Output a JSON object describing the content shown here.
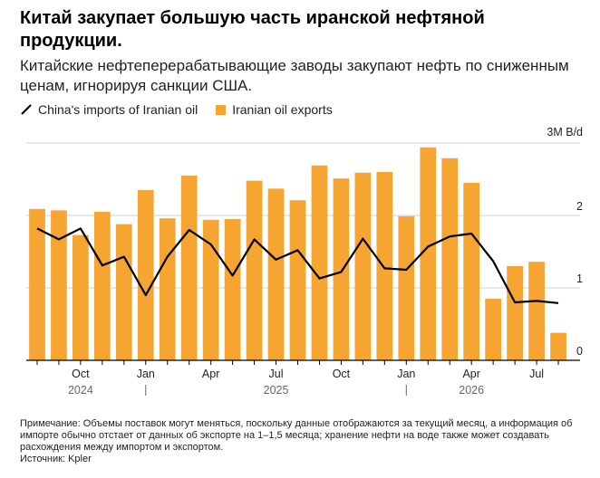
{
  "title": "Китай закупает большую часть иранской нефтяной продукции.",
  "subtitle": "Китайские нефтеперерабатывающие заводы закупают нефть по сниженным ценам, игнорируя санкции США.",
  "legend": {
    "line_label": "China's imports of Iranian oil",
    "bar_label": "Iranian oil exports"
  },
  "note": "Примечание: Объемы поставок могут меняться, поскольку данные отображаются за текущий месяц, а информация об импорте обычно отстает от данных об экспорте на 1–1,5 месяца; хранение нефти на воде также может создавать расхождения между импортом и экспортом.",
  "source": "Источник: Kpler",
  "colors": {
    "bar": "#f6a432",
    "line": "#000000",
    "grid": "#d0d0d0"
  },
  "chart_data": {
    "type": "bar",
    "unit_label": "3M B/d",
    "ylim": [
      0,
      3
    ],
    "yticks": [
      0,
      1,
      2
    ],
    "categories": [
      "2024-08",
      "2024-09",
      "2024-10",
      "2024-11",
      "2024-12",
      "2025-01",
      "2025-02",
      "2025-03",
      "2025-04",
      "2025-05",
      "2025-06",
      "2025-07",
      "2025-08",
      "2025-09",
      "2025-10",
      "2025-11",
      "2025-12",
      "2026-01",
      "2026-02",
      "2026-03",
      "2026-04",
      "2026-05",
      "2026-06",
      "2026-07",
      "2026-08"
    ],
    "series": [
      {
        "name": "Iranian oil exports",
        "kind": "bar",
        "values": [
          2.09,
          2.07,
          1.73,
          2.05,
          1.88,
          2.35,
          1.96,
          2.55,
          1.94,
          1.95,
          2.48,
          2.37,
          2.21,
          2.69,
          2.51,
          2.59,
          2.6,
          1.99,
          2.94,
          2.79,
          2.45,
          0.85,
          1.3,
          1.36,
          0.38
        ]
      },
      {
        "name": "China's imports of Iranian oil",
        "kind": "line",
        "values": [
          1.82,
          1.67,
          1.82,
          1.31,
          1.43,
          0.9,
          1.43,
          1.8,
          1.6,
          1.17,
          1.67,
          1.39,
          1.52,
          1.13,
          1.22,
          1.68,
          1.27,
          1.25,
          1.57,
          1.71,
          1.75,
          1.37,
          0.8,
          0.82,
          0.79
        ]
      }
    ],
    "xtick_labels": [
      {
        "category": "2024-10",
        "label": "Oct"
      },
      {
        "category": "2025-01",
        "label": "Jan"
      },
      {
        "category": "2025-04",
        "label": "Apr"
      },
      {
        "category": "2025-07",
        "label": "Jul"
      },
      {
        "category": "2025-10",
        "label": "Oct"
      },
      {
        "category": "2026-01",
        "label": "Jan"
      },
      {
        "category": "2026-04",
        "label": "Apr"
      },
      {
        "category": "2026-07",
        "label": "Jul"
      }
    ],
    "year_labels": [
      {
        "category": "2024-10",
        "label": "2024"
      },
      {
        "category": "2025-07",
        "label": "2025"
      },
      {
        "category": "2026-04",
        "label": "2026"
      }
    ],
    "year_dividers": [
      "2025-01",
      "2026-01"
    ],
    "grid": true
  }
}
